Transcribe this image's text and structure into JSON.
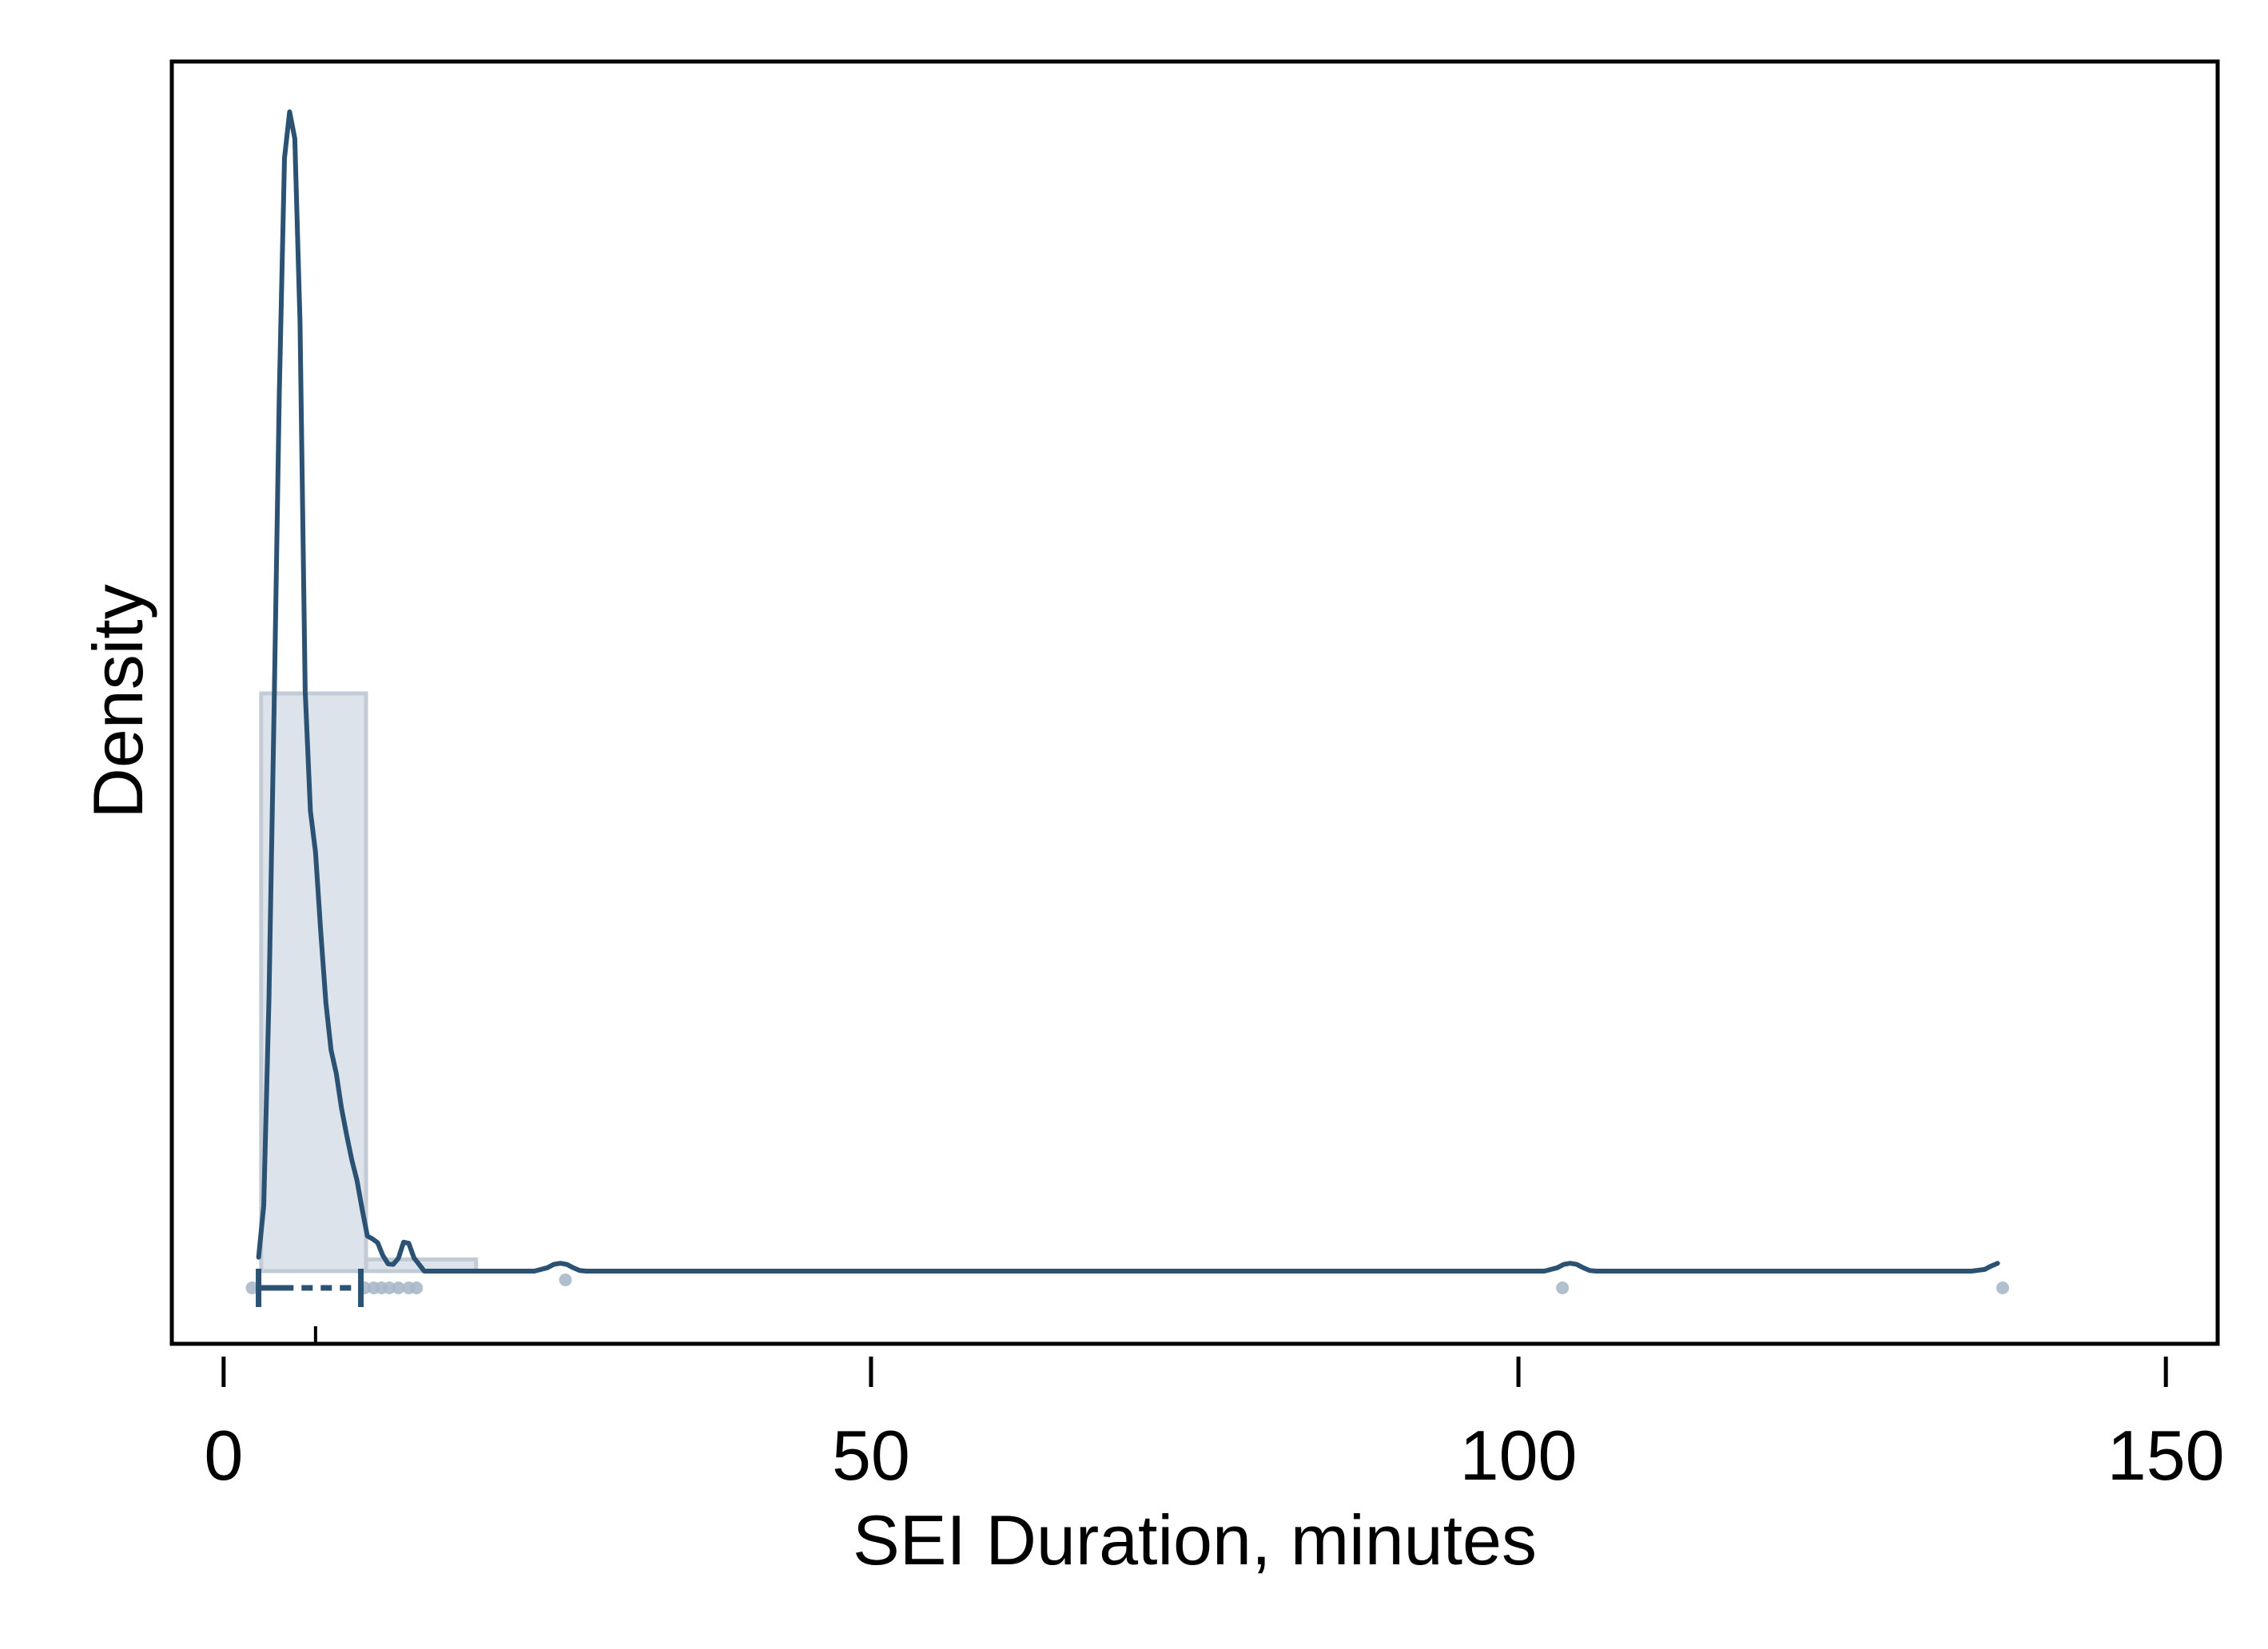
{
  "chart_data": {
    "type": "histogram-density",
    "xlabel": "SEI Duration, minutes",
    "ylabel": "Density",
    "xlim": [
      -4,
      154
    ],
    "x_ticks": [
      0,
      50,
      100,
      150
    ],
    "x_tick_labels": [
      "0",
      "50",
      "100",
      "150"
    ],
    "y_ticks_shown": false,
    "grid": false,
    "histogram": {
      "bin_edges": [
        2.9,
        11.0,
        19.5
      ],
      "densities": [
        0.1038,
        0.0021
      ]
    },
    "kde": {
      "x": [
        2.7,
        3.1,
        3.5,
        3.9,
        4.3,
        4.7,
        5.1,
        5.5,
        5.9,
        6.3,
        6.7,
        7.1,
        7.5,
        7.9,
        8.3,
        8.7,
        9.1,
        9.5,
        9.9,
        10.3,
        10.7,
        11.1,
        11.5,
        11.9,
        12.3,
        12.7,
        13.1,
        13.5,
        13.9,
        14.3,
        14.7,
        15.5,
        20,
        24,
        25,
        25.5,
        26,
        26.5,
        27,
        27.5,
        28,
        30,
        60,
        90,
        102,
        103,
        103.5,
        104,
        104.5,
        105,
        105.5,
        106,
        110,
        130,
        135,
        136,
        136.5,
        137
      ],
      "y": [
        0.0025,
        0.0117,
        0.0485,
        0.1012,
        0.1578,
        0.2,
        0.2083,
        0.2035,
        0.1706,
        0.1042,
        0.0827,
        0.0753,
        0.0611,
        0.0482,
        0.0397,
        0.0355,
        0.0293,
        0.0245,
        0.02,
        0.0163,
        0.0111,
        0.0063,
        0.0058,
        0.0051,
        0.0028,
        0.0013,
        0.0012,
        0.0023,
        0.0052,
        0.005,
        0.0024,
        0.0,
        0.0,
        0.0,
        0.0006,
        0.0012,
        0.0014,
        0.0012,
        0.0006,
        0.0001,
        0.0,
        0.0,
        0.0,
        0.0,
        0.0,
        0.0006,
        0.0012,
        0.0014,
        0.0012,
        0.0006,
        0.0001,
        0.0,
        0.0,
        0.0,
        0.0,
        0.0003,
        0.0009,
        0.0014
      ]
    },
    "summary_bar": {
      "min": 2.7,
      "q1": 5.4,
      "median": 7.1,
      "q3": 10.4,
      "max": 10.6
    },
    "observations": [
      2.2,
      10.9,
      11.6,
      12.2,
      12.8,
      13.5,
      14.3,
      14.9,
      26.4,
      103.4,
      137.4
    ],
    "colors": {
      "line": "#2b5273",
      "fill": "#dde3eb",
      "fill_stroke": "#c3ccd6",
      "points": "#a9b8c9"
    }
  }
}
